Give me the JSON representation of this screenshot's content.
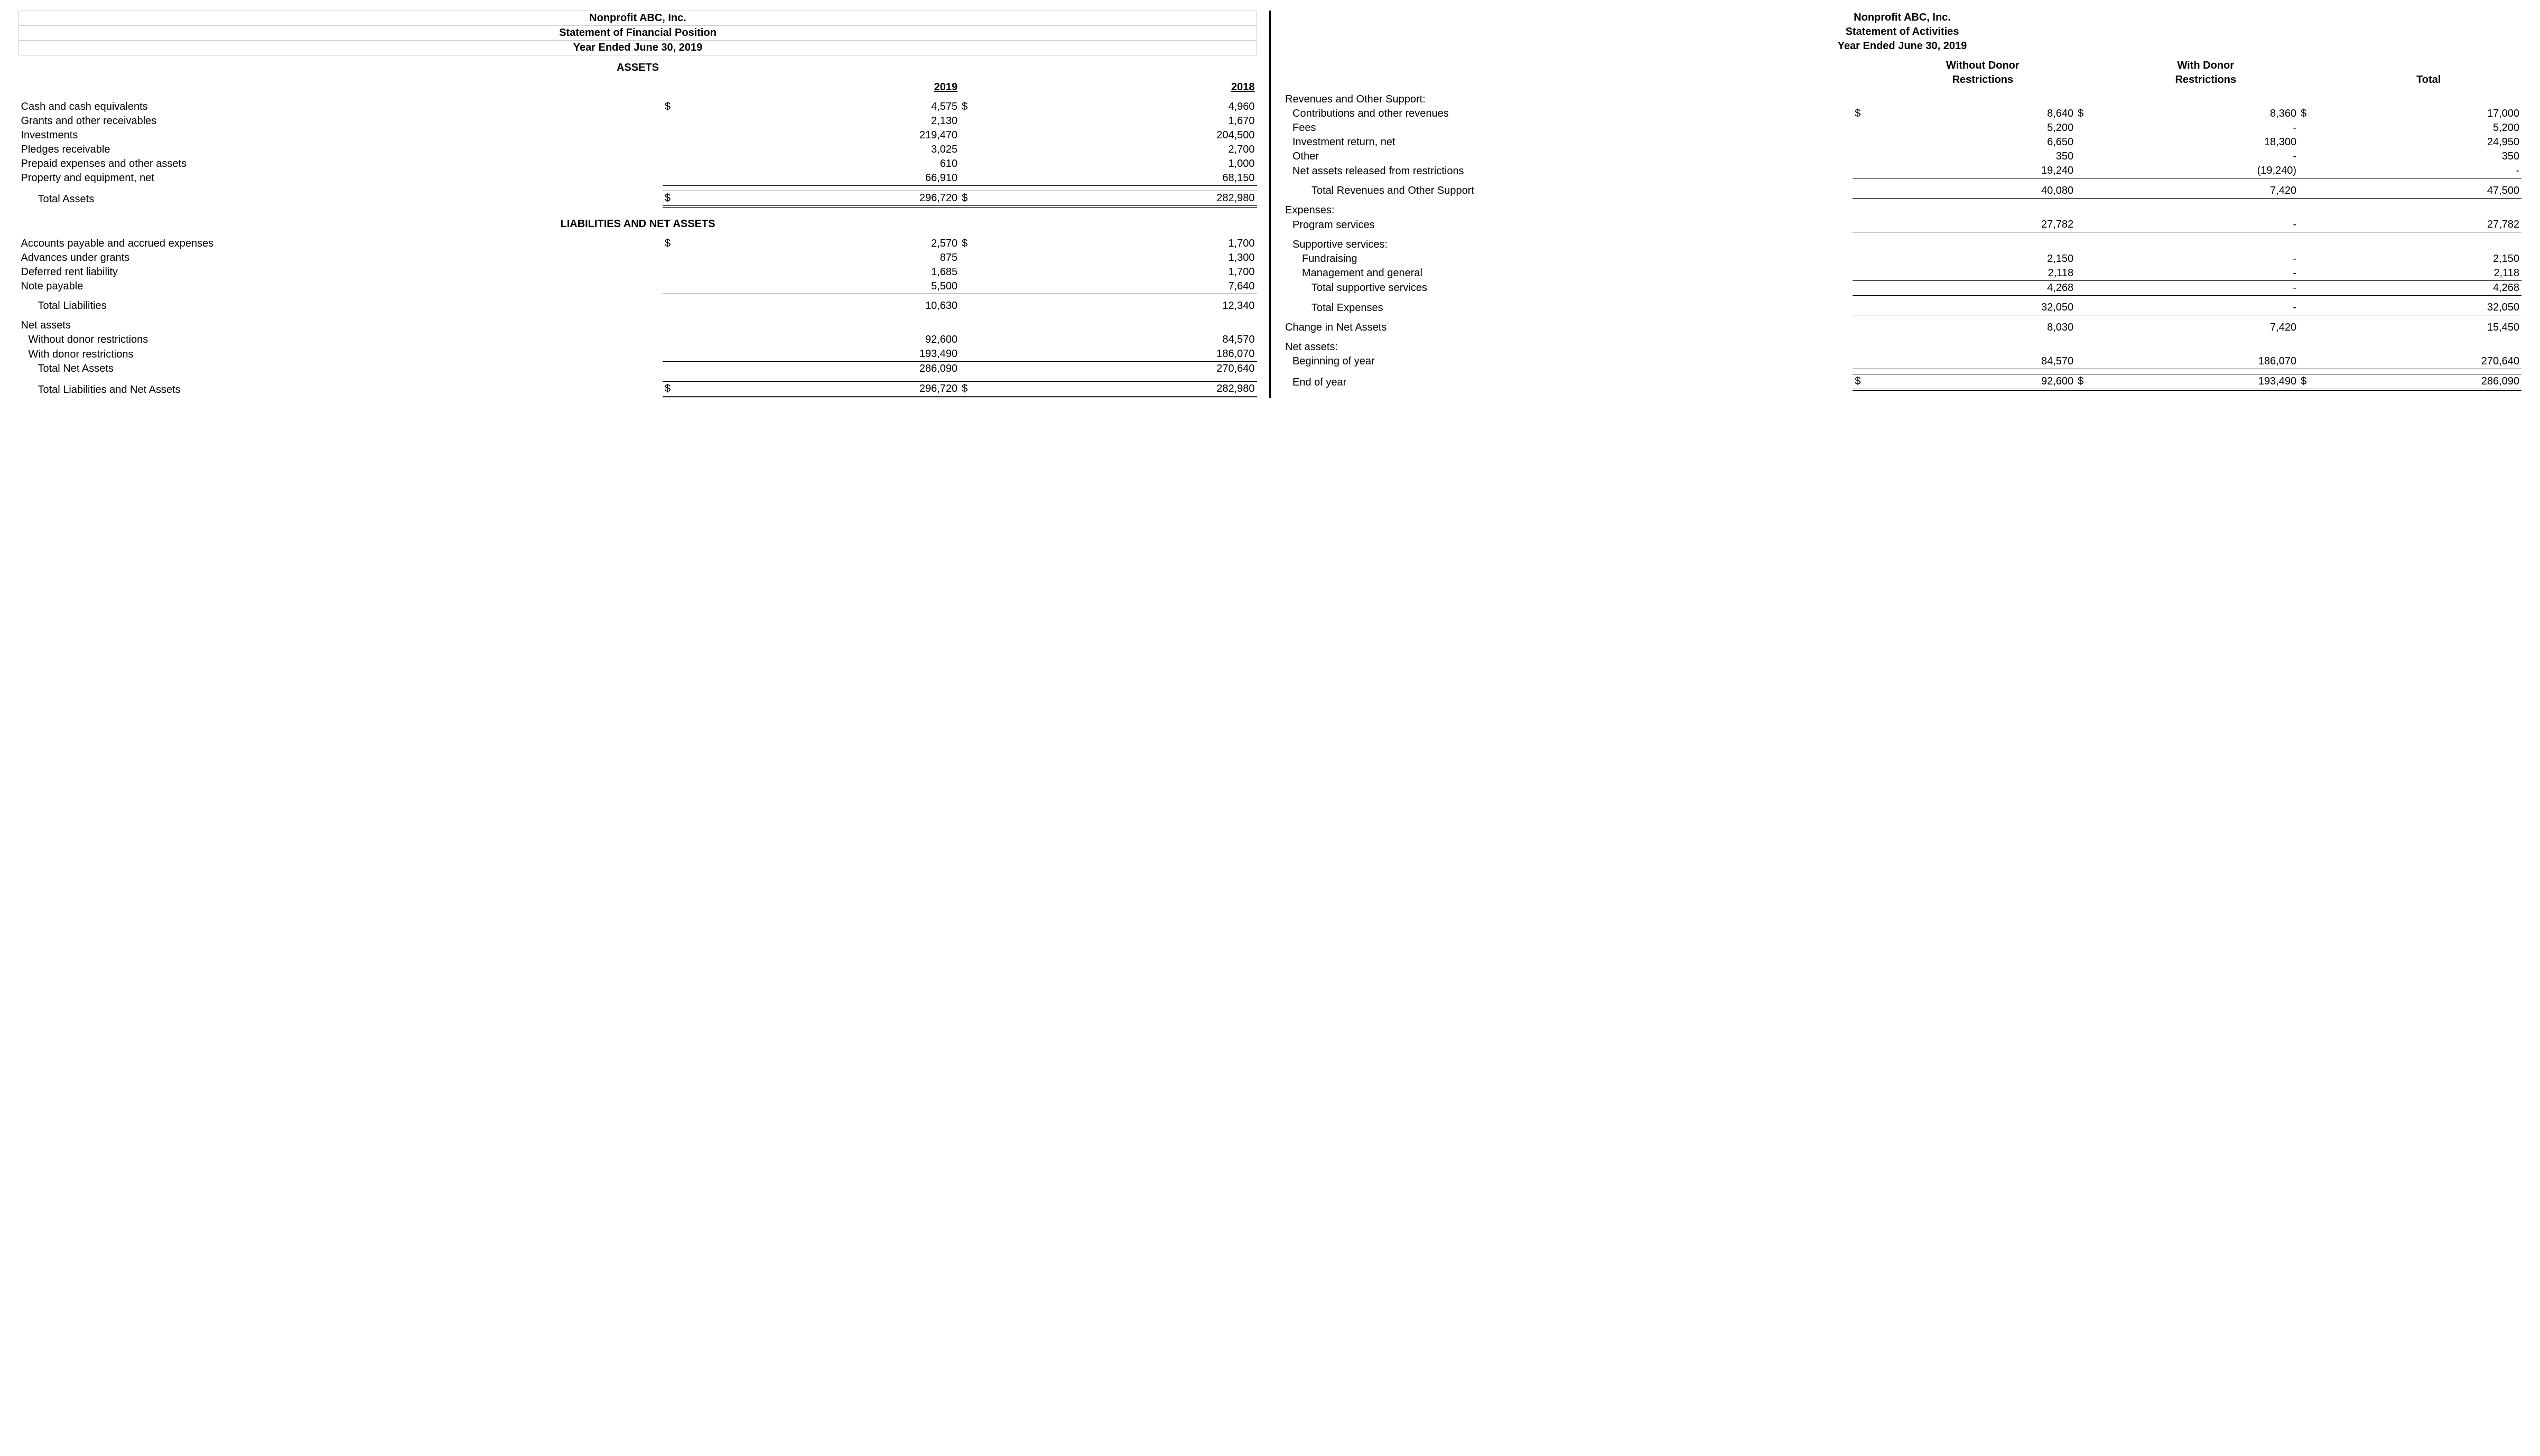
{
  "left": {
    "org": "Nonprofit ABC, Inc.",
    "title": "Statement of Financial Position",
    "period": "Year Ended June 30, 2019",
    "section_assets": "ASSETS",
    "year1": "2019",
    "year2": "2018",
    "rows_assets": [
      {
        "label": "Cash and cash equivalents",
        "d1": "$",
        "v1": "4,575",
        "d2": "$",
        "v2": "4,960"
      },
      {
        "label": "Grants and other receivables",
        "v1": "2,130",
        "v2": "1,670"
      },
      {
        "label": "Investments",
        "v1": "219,470",
        "v2": "204,500"
      },
      {
        "label": "Pledges receivable",
        "v1": "3,025",
        "v2": "2,700"
      },
      {
        "label": "Prepaid expenses and other assets",
        "v1": "610",
        "v2": "1,000"
      },
      {
        "label": "Property and equipment, net",
        "v1": "66,910",
        "v2": "68,150",
        "ul": "single"
      }
    ],
    "total_assets": {
      "label": "Total Assets",
      "d1": "$",
      "v1": "296,720",
      "d2": "$",
      "v2": "282,980"
    },
    "section_liab": "LIABILITIES AND NET ASSETS",
    "rows_liab": [
      {
        "label": "Accounts payable and accrued expenses",
        "d1": "$",
        "v1": "2,570",
        "d2": "$",
        "v2": "1,700"
      },
      {
        "label": "Advances under grants",
        "v1": "875",
        "v2": "1,300"
      },
      {
        "label": "Deferred rent liability",
        "v1": "1,685",
        "v2": "1,700"
      },
      {
        "label": "Note payable",
        "v1": "5,500",
        "v2": "7,640",
        "ul": "single"
      }
    ],
    "total_liab": {
      "label": "Total Liabilities",
      "v1": "10,630",
      "v2": "12,340"
    },
    "net_assets_hdr": "Net assets",
    "na_without": {
      "label": "Without donor restrictions",
      "v1": "92,600",
      "v2": "84,570"
    },
    "na_with": {
      "label": "With donor restrictions",
      "v1": "193,490",
      "v2": "186,070",
      "ul": "single"
    },
    "total_na": {
      "label": "Total Net Assets",
      "v1": "286,090",
      "v2": "270,640"
    },
    "total_lna": {
      "label": "Total Liabilities and Net Assets",
      "d1": "$",
      "v1": "296,720",
      "d2": "$",
      "v2": "282,980"
    }
  },
  "right": {
    "org": "Nonprofit ABC, Inc.",
    "title": "Statement of Activities",
    "period": "Year Ended June 30, 2019",
    "col1a": "Without Donor",
    "col1b": "Restrictions",
    "col2a": "With Donor",
    "col2b": "Restrictions",
    "col3": "Total",
    "rev_hdr": "Revenues and Other Support:",
    "rev_rows": [
      {
        "label": "Contributions and other revenues",
        "indent": 1,
        "d1": "$",
        "v1": "8,640",
        "d2": "$",
        "v2": "8,360",
        "d3": "$",
        "v3": "17,000"
      },
      {
        "label": "Fees",
        "indent": 1,
        "v1": "5,200",
        "v2": "-",
        "v3": "5,200"
      },
      {
        "label": "Investment return, net",
        "indent": 1,
        "v1": "6,650",
        "v2": "18,300",
        "v3": "24,950"
      },
      {
        "label": "Other",
        "indent": 1,
        "v1": "350",
        "v2": "-",
        "v3": "350"
      },
      {
        "label": "Net assets released from restrictions",
        "indent": 1,
        "v1": "19,240",
        "v2": "(19,240)",
        "v3": "-",
        "ul": "single"
      }
    ],
    "rev_total": {
      "label": "Total Revenues and Other Support",
      "v1": "40,080",
      "v2": "7,420",
      "v3": "47,500"
    },
    "exp_hdr": "Expenses:",
    "exp_prog": {
      "label": "Program services",
      "v1": "27,782",
      "v2": "-",
      "v3": "27,782",
      "ul": "single"
    },
    "supp_hdr": "Supportive services:",
    "supp_rows": [
      {
        "label": "Fundraising",
        "indent": 2,
        "v1": "2,150",
        "v2": "-",
        "v3": "2,150"
      },
      {
        "label": "Management and general",
        "indent": 2,
        "v1": "2,118",
        "v2": "-",
        "v3": "2,118",
        "ul": "single"
      }
    ],
    "supp_total": {
      "label": "Total supportive services",
      "v1": "4,268",
      "v2": "-",
      "v3": "4,268"
    },
    "exp_total": {
      "label": "Total Expenses",
      "v1": "32,050",
      "v2": "-",
      "v3": "32,050"
    },
    "change": {
      "label": "Change in Net Assets",
      "v1": "8,030",
      "v2": "7,420",
      "v3": "15,450"
    },
    "na_hdr": "Net assets:",
    "na_begin": {
      "label": "Beginning of year",
      "v1": "84,570",
      "v2": "186,070",
      "v3": "270,640",
      "ul": "single"
    },
    "na_end": {
      "label": "End of year",
      "d1": "$",
      "v1": "92,600",
      "d2": "$",
      "v2": "193,490",
      "d3": "$",
      "v3": "286,090"
    }
  }
}
